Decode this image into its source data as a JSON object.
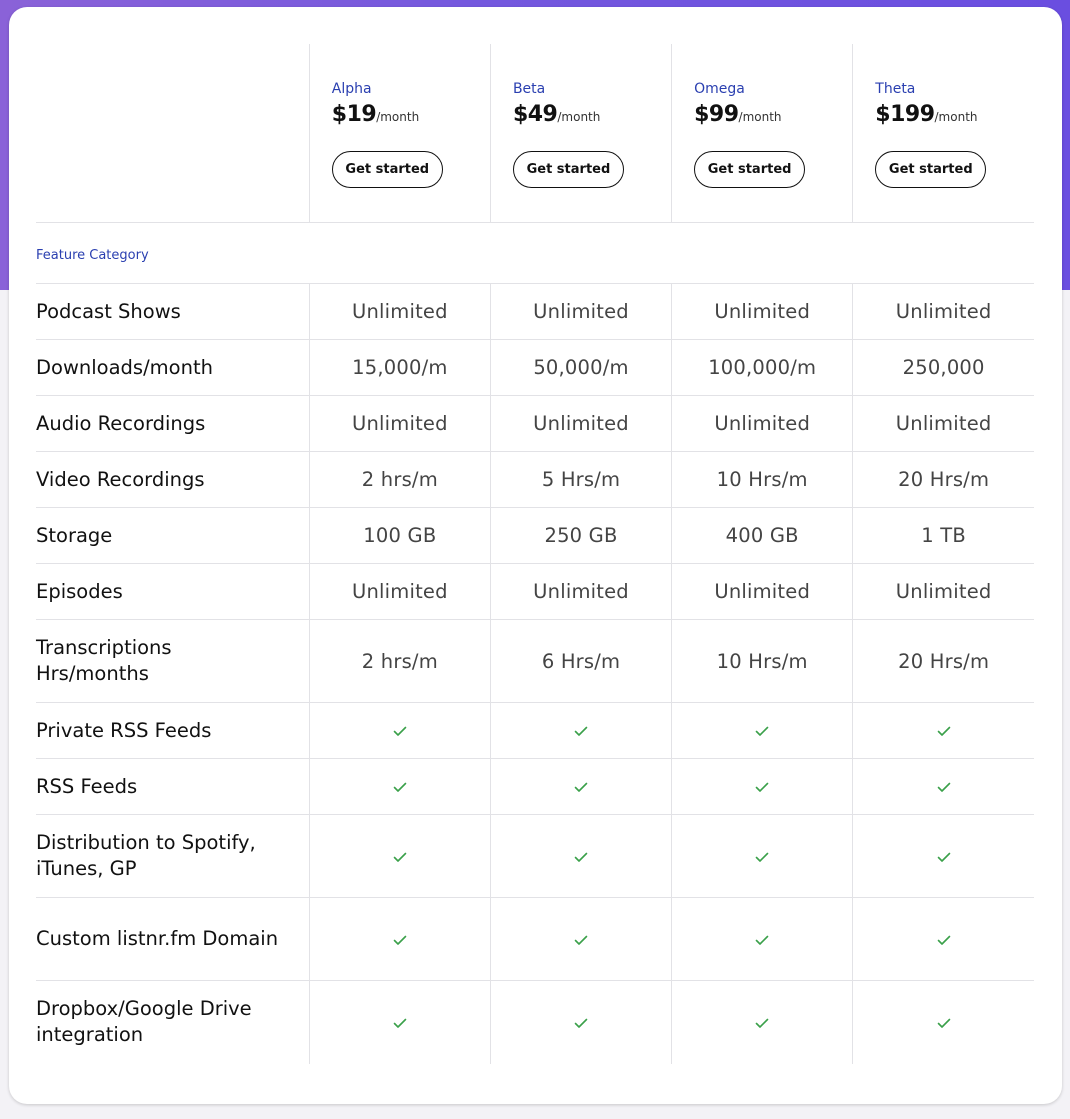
{
  "colors": {
    "accent": "#2a3fb0",
    "check": "#3aa04a",
    "background_top": "#7458de"
  },
  "plans": [
    {
      "name": "Alpha",
      "price": "$19",
      "period": "/month",
      "cta": "Get started"
    },
    {
      "name": "Beta",
      "price": "$49",
      "period": "/month",
      "cta": "Get started"
    },
    {
      "name": "Omega",
      "price": "$99",
      "period": "/month",
      "cta": "Get started"
    },
    {
      "name": "Theta",
      "price": "$199",
      "period": "/month",
      "cta": "Get started"
    }
  ],
  "category_label": "Feature Category",
  "features": [
    {
      "label": "Podcast Shows",
      "values": [
        "Unlimited",
        "Unlimited",
        "Unlimited",
        "Unlimited"
      ]
    },
    {
      "label": "Downloads/month",
      "values": [
        "15,000/m",
        "50,000/m",
        "100,000/m",
        "250,000"
      ]
    },
    {
      "label": "Audio Recordings",
      "values": [
        "Unlimited",
        "Unlimited",
        "Unlimited",
        "Unlimited"
      ]
    },
    {
      "label": "Video Recordings",
      "values": [
        "2 hrs/m",
        "5 Hrs/m",
        "10 Hrs/m",
        "20 Hrs/m"
      ]
    },
    {
      "label": "Storage",
      "values": [
        "100 GB",
        "250 GB",
        "400 GB",
        "1 TB"
      ]
    },
    {
      "label": "Episodes",
      "values": [
        "Unlimited",
        "Unlimited",
        "Unlimited",
        "Unlimited"
      ]
    },
    {
      "label": "Transcriptions Hrs/months",
      "values": [
        "2 hrs/m",
        "6 Hrs/m",
        "10 Hrs/m",
        "20 Hrs/m"
      ]
    },
    {
      "label": "Private RSS Feeds",
      "check": [
        true,
        true,
        true,
        true
      ]
    },
    {
      "label": "RSS Feeds",
      "check": [
        true,
        true,
        true,
        true
      ]
    },
    {
      "label": "Distribution to Spotify, iTunes, GP",
      "check": [
        true,
        true,
        true,
        true
      ]
    },
    {
      "label": "Custom listnr.fm Domain",
      "check": [
        true,
        true,
        true,
        true
      ]
    },
    {
      "label": "Dropbox/Google Drive integration",
      "check": [
        true,
        true,
        true,
        true
      ]
    }
  ]
}
